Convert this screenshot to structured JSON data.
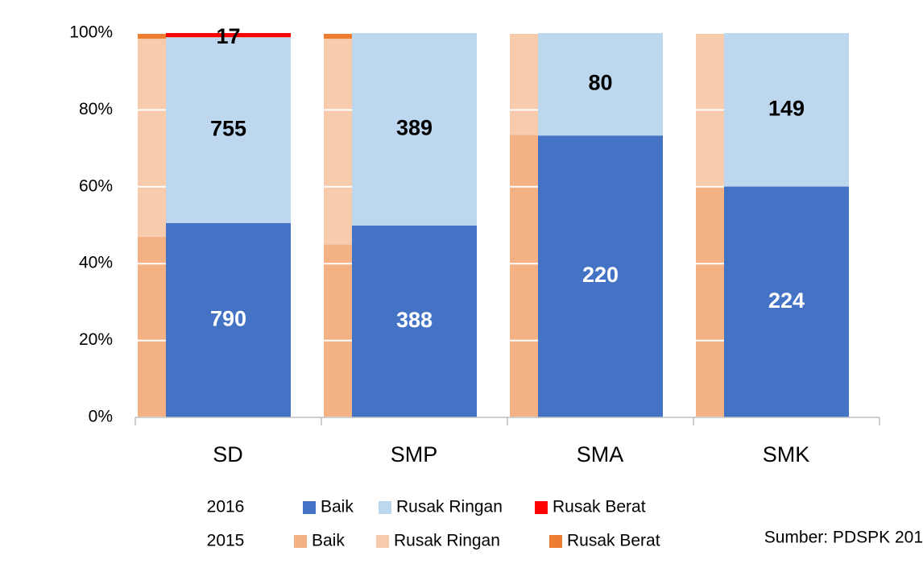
{
  "chart_data": {
    "type": "bar",
    "stacked": "percent",
    "categories": [
      "SD",
      "SMP",
      "SMA",
      "SMK"
    ],
    "groups": [
      {
        "name": "2015",
        "series": [
          {
            "name": "Baik",
            "color": "#f4b183",
            "values": [
              47,
              45,
              73.5,
              60
            ]
          },
          {
            "name": "Rusak Ringan",
            "color": "#f8cbad",
            "values": [
              51.5,
              53.5,
              26.5,
              40
            ]
          },
          {
            "name": "Rusak Berat",
            "color": "#ed7d31",
            "values": [
              1.5,
              1.5,
              0,
              0
            ]
          }
        ]
      },
      {
        "name": "2016",
        "series": [
          {
            "name": "Baik",
            "color": "#4472c4",
            "label_color": "#ffffff",
            "values": [
              790,
              388,
              220,
              224
            ]
          },
          {
            "name": "Rusak Ringan",
            "color": "#bdd7ee",
            "label_color": "#000000",
            "values": [
              755,
              389,
              80,
              149
            ]
          },
          {
            "name": "Rusak Berat",
            "color": "#ff0000",
            "label_color": "#000000",
            "values": [
              17,
              0,
              0,
              0
            ]
          }
        ]
      }
    ],
    "ylim": [
      0,
      100
    ],
    "yticks": [
      {
        "value": 0,
        "label": "0%"
      },
      {
        "value": 20,
        "label": "20%"
      },
      {
        "value": 40,
        "label": "40%"
      },
      {
        "value": 60,
        "label": "60%"
      },
      {
        "value": 80,
        "label": "80%"
      },
      {
        "value": 100,
        "label": "100%"
      }
    ],
    "grid": true,
    "source": "Sumber: PDSPK 201"
  }
}
